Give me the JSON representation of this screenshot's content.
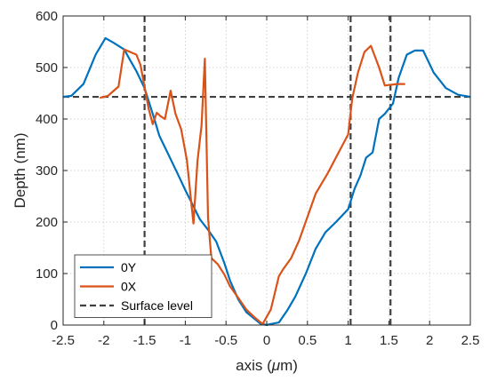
{
  "chart_data": {
    "type": "line",
    "xlabel": "axis (",
    "xlabel_unit_symbol": "μ",
    "xlabel_unit_rest": "m)",
    "ylabel": "Depth (nm)",
    "xlim": [
      -2.5,
      2.5
    ],
    "ylim": [
      0,
      600
    ],
    "x_ticks": [
      -2.5,
      -2,
      -1.5,
      -1,
      -0.5,
      0,
      0.5,
      1,
      1.5,
      2,
      2.5
    ],
    "x_tick_labels": [
      "-2.5",
      "-2",
      "-1.5",
      "-1",
      "-0.5",
      "0",
      "0.5",
      "1",
      "1.5",
      "2",
      "2.5"
    ],
    "y_ticks": [
      0,
      100,
      200,
      300,
      400,
      500,
      600
    ],
    "y_tick_labels": [
      "0",
      "100",
      "200",
      "300",
      "400",
      "500",
      "600"
    ],
    "grid": true,
    "legend_position": "bottom-left",
    "series": [
      {
        "name": "0Y",
        "color": "#0072BD",
        "style": "solid",
        "x": [
          -2.5,
          -2.4,
          -2.25,
          -2.1,
          -1.98,
          -1.88,
          -1.75,
          -1.68,
          -1.6,
          -1.5,
          -1.44,
          -1.38,
          -1.32,
          -1.25,
          -1.18,
          -1.1,
          -1.0,
          -0.92,
          -0.82,
          -0.72,
          -0.62,
          -0.52,
          -0.45,
          -0.35,
          -0.25,
          -0.15,
          -0.08,
          0.0,
          0.05,
          0.15,
          0.25,
          0.35,
          0.48,
          0.6,
          0.72,
          0.85,
          1.0,
          1.08,
          1.15,
          1.22,
          1.3,
          1.38,
          1.45,
          1.55,
          1.62,
          1.72,
          1.82,
          1.92,
          2.05,
          2.2,
          2.35,
          2.5
        ],
        "y": [
          443,
          445,
          468,
          525,
          557,
          548,
          535,
          515,
          493,
          460,
          430,
          400,
          368,
          345,
          322,
          296,
          262,
          237,
          205,
          185,
          162,
          120,
          86,
          50,
          25,
          12,
          3,
          0,
          2,
          5,
          28,
          55,
          100,
          148,
          180,
          200,
          225,
          265,
          290,
          325,
          335,
          400,
          410,
          430,
          480,
          525,
          533,
          533,
          490,
          460,
          447,
          443
        ]
      },
      {
        "name": "0X",
        "color": "#D95319",
        "style": "solid",
        "x": [
          -2.05,
          -1.95,
          -1.82,
          -1.75,
          -1.6,
          -1.55,
          -1.45,
          -1.4,
          -1.35,
          -1.3,
          -1.25,
          -1.18,
          -1.12,
          -1.05,
          -0.98,
          -0.9,
          -0.85,
          -0.8,
          -0.76,
          -0.72,
          -0.68,
          -0.6,
          -0.52,
          -0.45,
          -0.35,
          -0.25,
          -0.15,
          -0.05,
          0.05,
          0.15,
          0.2,
          0.3,
          0.4,
          0.5,
          0.6,
          0.75,
          0.9,
          1.0,
          1.05,
          1.12,
          1.2,
          1.28,
          1.38,
          1.45,
          1.5,
          1.6,
          1.7
        ],
        "y": [
          441,
          445,
          463,
          535,
          525,
          505,
          420,
          390,
          412,
          405,
          400,
          455,
          410,
          380,
          320,
          197,
          318,
          388,
          517,
          208,
          130,
          118,
          98,
          75,
          53,
          30,
          15,
          2,
          30,
          95,
          108,
          130,
          165,
          210,
          255,
          295,
          340,
          370,
          440,
          490,
          530,
          542,
          500,
          465,
          466,
          468,
          468
        ]
      },
      {
        "name": "Surface level",
        "color": "#404040",
        "style": "dashed",
        "hlines": [
          443
        ],
        "vlines": [
          -1.5,
          1.03,
          1.52
        ]
      }
    ]
  }
}
